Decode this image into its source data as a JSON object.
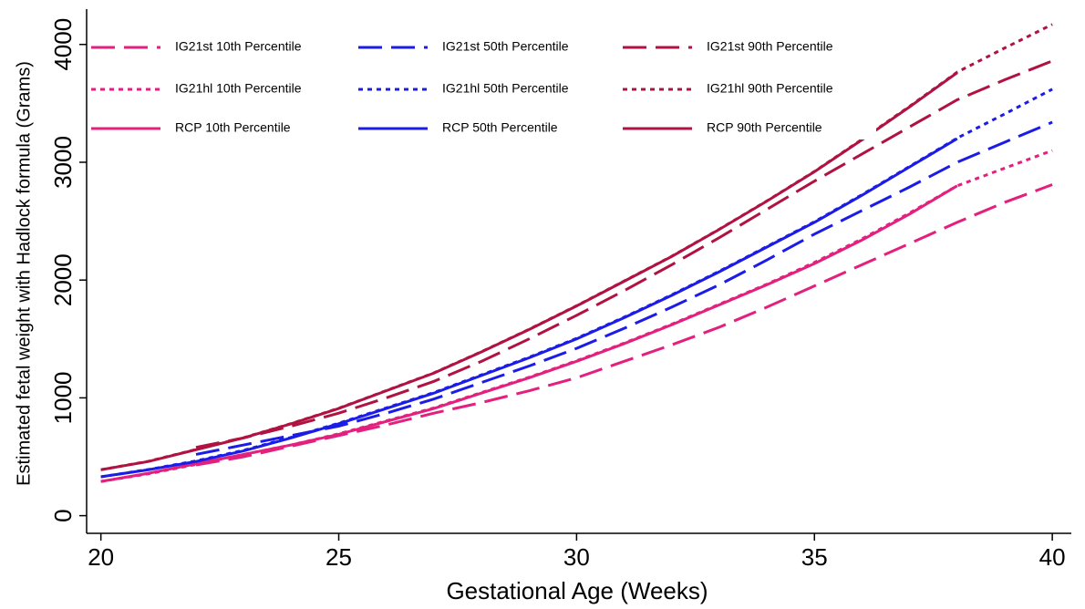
{
  "chart_data": {
    "type": "line",
    "x_label": "Gestational Age (Weeks)",
    "y_label": "Estimated fetal weight with Hadlock formula (Grams)",
    "x": [
      20,
      21,
      22,
      23,
      24,
      25,
      26,
      27,
      28,
      29,
      30,
      31,
      32,
      33,
      34,
      35,
      36,
      37,
      38,
      39,
      40
    ],
    "xlim": [
      19.7,
      40.4
    ],
    "xticks": [
      20,
      25,
      30,
      35,
      40
    ],
    "ylim": [
      -150,
      4300
    ],
    "yticks": [
      0,
      1000,
      2000,
      3000,
      4000
    ],
    "grid": false,
    "legend": "top-left",
    "series": [
      {
        "name": "IG21st 10th Percentile",
        "color": "#e3207e",
        "dash": "dashed",
        "values": [
          null,
          null,
          430,
          500,
          590,
          680,
          770,
          870,
          960,
          1060,
          1170,
          1310,
          1450,
          1600,
          1770,
          1950,
          2130,
          2310,
          2490,
          2660,
          2810
        ]
      },
      {
        "name": "IG21st 50th Percentile",
        "color": "#1c1ce8",
        "dash": "dashed",
        "values": [
          null,
          null,
          520,
          600,
          680,
          760,
          870,
          990,
          1130,
          1270,
          1420,
          1590,
          1770,
          1960,
          2170,
          2390,
          2590,
          2790,
          3000,
          3170,
          3340
        ]
      },
      {
        "name": "IG21st 90th Percentile",
        "color": "#b01242",
        "dash": "dashed",
        "values": [
          null,
          null,
          580,
          660,
          760,
          870,
          1000,
          1140,
          1310,
          1500,
          1700,
          1910,
          2130,
          2360,
          2600,
          2840,
          3070,
          3300,
          3530,
          3700,
          3860
        ]
      },
      {
        "name": "IG21hl 10th Percentile",
        "color": "#e3207e",
        "dash": "dotted",
        "values": [
          290,
          355,
          435,
          520,
          600,
          695,
          805,
          915,
          1045,
          1175,
          1315,
          1465,
          1625,
          1795,
          1965,
          2150,
          2350,
          2570,
          2800,
          2950,
          3100
        ]
      },
      {
        "name": "IG21hl 50th Percentile",
        "color": "#1c1ce8",
        "dash": "dotted",
        "values": [
          330,
          392,
          465,
          555,
          665,
          785,
          915,
          1045,
          1195,
          1345,
          1505,
          1685,
          1875,
          2075,
          2285,
          2495,
          2725,
          2965,
          3205,
          3410,
          3620
        ]
      },
      {
        "name": "IG21hl 90th Percentile",
        "color": "#b01242",
        "dash": "dotted",
        "values": [
          390,
          462,
          562,
          662,
          782,
          912,
          1062,
          1212,
          1392,
          1582,
          1782,
          1992,
          2202,
          2432,
          2672,
          2922,
          3195,
          3475,
          3765,
          3970,
          4170
        ]
      },
      {
        "name": "RCP 10th Percentile",
        "color": "#e3207e",
        "dash": "solid",
        "values": [
          290,
          360,
          440,
          520,
          600,
          690,
          800,
          910,
          1040,
          1170,
          1310,
          1460,
          1620,
          1790,
          1960,
          2140,
          2340,
          2560,
          2800,
          null,
          null
        ]
      },
      {
        "name": "RCP 50th Percentile",
        "color": "#1c1ce8",
        "dash": "solid",
        "values": [
          330,
          390,
          460,
          550,
          660,
          780,
          910,
          1040,
          1190,
          1340,
          1500,
          1680,
          1870,
          2070,
          2280,
          2490,
          2720,
          2960,
          3200,
          null,
          null
        ]
      },
      {
        "name": "RCP 90th Percentile",
        "color": "#b01242",
        "dash": "solid",
        "values": [
          390,
          460,
          560,
          660,
          780,
          910,
          1060,
          1210,
          1390,
          1580,
          1780,
          1990,
          2200,
          2430,
          2670,
          2920,
          3190,
          3470,
          3760,
          null,
          null
        ]
      }
    ]
  }
}
